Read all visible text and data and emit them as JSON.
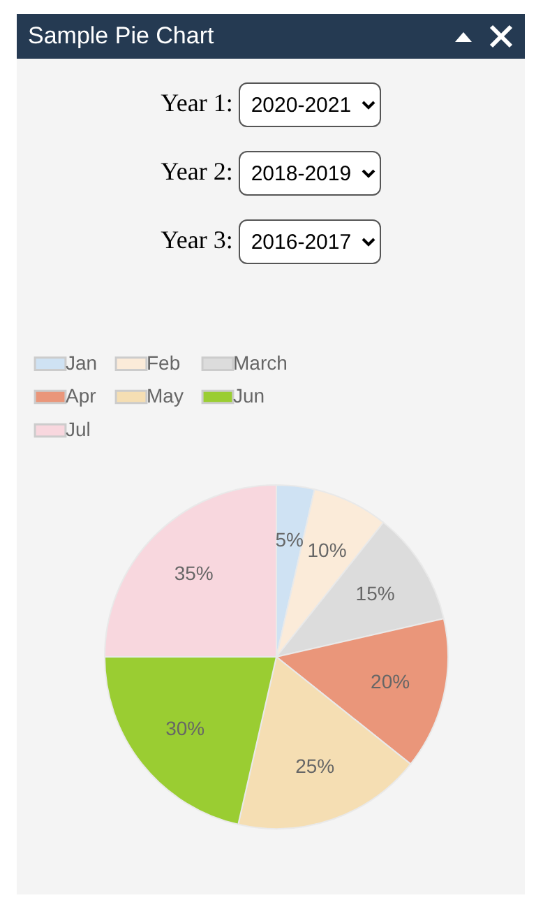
{
  "chart_data": {
    "type": "pie",
    "title": "Sample Pie Chart",
    "annotations": [
      "Year 1:",
      "2020-2021",
      "Year 2:",
      "2018-2019",
      "Year 3:",
      "2016-2017"
    ],
    "categories": [
      "Jan",
      "Feb",
      "March",
      "Apr",
      "May",
      "Jun",
      "Jul"
    ],
    "values": [
      5,
      10,
      15,
      20,
      25,
      30,
      35
    ],
    "value_labels": [
      "5%",
      "10%",
      "15%",
      "20%",
      "25%",
      "30%",
      "35%"
    ],
    "colors": [
      "#cfe2f3",
      "#fbebd9",
      "#dcdcdc",
      "#ea967a",
      "#f5deb3",
      "#9acd32",
      "#f8d7de"
    ],
    "legend": "top"
  }
}
